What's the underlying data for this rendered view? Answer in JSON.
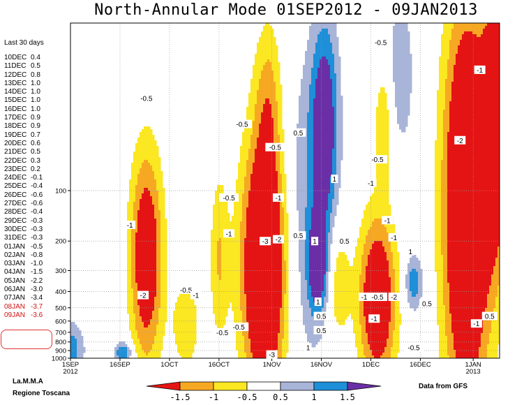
{
  "title": "North-Annular Mode 01SEP2012 - 09JAN2013",
  "last30_label": "Last 30 days",
  "daily_values": [
    {
      "day": "10DEC",
      "value": "0.4"
    },
    {
      "day": "11DEC",
      "value": "0.5"
    },
    {
      "day": "12DEC",
      "value": "0.8"
    },
    {
      "day": "13DEC",
      "value": "1.0"
    },
    {
      "day": "14DEC",
      "value": "1.0"
    },
    {
      "day": "15DEC",
      "value": "1.0"
    },
    {
      "day": "16DEC",
      "value": "1.0"
    },
    {
      "day": "17DEC",
      "value": "0.9"
    },
    {
      "day": "18DEC",
      "value": "0.9"
    },
    {
      "day": "19DEC",
      "value": "0.7"
    },
    {
      "day": "20DEC",
      "value": "0.6"
    },
    {
      "day": "21DEC",
      "value": "0.5"
    },
    {
      "day": "22DEC",
      "value": "0.3"
    },
    {
      "day": "23DEC",
      "value": "0.2"
    },
    {
      "day": "24DEC",
      "value": "-0.1"
    },
    {
      "day": "25DEC",
      "value": "-0.4"
    },
    {
      "day": "26DEC",
      "value": "-0.6"
    },
    {
      "day": "27DEC",
      "value": "-0.6"
    },
    {
      "day": "28DEC",
      "value": "-0.4"
    },
    {
      "day": "29DEC",
      "value": "-0.3"
    },
    {
      "day": "30DEC",
      "value": "-0.3"
    },
    {
      "day": "31DEC",
      "value": "-0.3"
    },
    {
      "day": "01JAN",
      "value": "-0.5"
    },
    {
      "day": "02JAN",
      "value": "-0.8"
    },
    {
      "day": "03JAN",
      "value": "-1.0"
    },
    {
      "day": "04JAN",
      "value": "-1.5"
    },
    {
      "day": "05JAN",
      "value": "-2.2"
    },
    {
      "day": "06JAN",
      "value": "-3.0"
    },
    {
      "day": "07JAN",
      "value": "-3.4"
    },
    {
      "day": "08JAN",
      "value": "-3.7"
    },
    {
      "day": "09JAN",
      "value": "-3.6"
    }
  ],
  "credit_line1": "La.M.M.A",
  "credit_line2": "Regione Toscana",
  "source": "Data from GFS",
  "chart_data": {
    "type": "heatmap",
    "title": "North-Annular Mode 01SEP2012 - 09JAN2013",
    "y_scale": "log",
    "y_reversed": true,
    "ylim": [
      10,
      1000
    ],
    "y_ticks": [
      {
        "value": 100,
        "label": "100"
      },
      {
        "value": 200,
        "label": "200"
      },
      {
        "value": 300,
        "label": "300"
      },
      {
        "value": 400,
        "label": "400"
      },
      {
        "value": 500,
        "label": "500"
      },
      {
        "value": 600,
        "label": "600"
      },
      {
        "value": 700,
        "label": "700"
      },
      {
        "value": 800,
        "label": "800"
      },
      {
        "value": 900,
        "label": "900"
      },
      {
        "value": 1000,
        "label": "1000"
      }
    ],
    "xlim": [
      "2012-09-01",
      "2013-01-09"
    ],
    "x_ticks": [
      {
        "date": "2012-09-01",
        "label": "1SEP",
        "sub": "2012"
      },
      {
        "date": "2012-09-16",
        "label": "16SEP",
        "sub": ""
      },
      {
        "date": "2012-10-01",
        "label": "1OCT",
        "sub": ""
      },
      {
        "date": "2012-10-16",
        "label": "16OCT",
        "sub": ""
      },
      {
        "date": "2012-11-01",
        "label": "1NOV",
        "sub": ""
      },
      {
        "date": "2012-11-16",
        "label": "16NOV",
        "sub": ""
      },
      {
        "date": "2012-12-01",
        "label": "1DEC",
        "sub": ""
      },
      {
        "date": "2012-12-16",
        "label": "16DEC",
        "sub": ""
      },
      {
        "date": "2013-01-01",
        "label": "1JAN",
        "sub": "2013"
      }
    ],
    "grid": true,
    "levels": [
      -1.5,
      -1,
      -0.5,
      0.5,
      1,
      1.5
    ],
    "colorbar": {
      "colors": [
        "#e51414",
        "#f7a823",
        "#fbe722",
        "#ffffff",
        "#a8b4d8",
        "#1e8fd8",
        "#6a2fa6"
      ],
      "labels": [
        "-1.5",
        "-1",
        "-0.5",
        "0.5",
        "1",
        "1.5"
      ]
    },
    "contour_labels": [
      {
        "text": "-0.5",
        "date": "2012-09-24",
        "p": 28
      },
      {
        "text": "-1",
        "date": "2012-09-19",
        "p": 160
      },
      {
        "text": "-2",
        "date": "2012-09-23",
        "p": 420
      },
      {
        "text": "-0.5",
        "date": "2012-10-06",
        "p": 390
      },
      {
        "text": "-1",
        "date": "2012-10-09",
        "p": 420
      },
      {
        "text": "-0.5",
        "date": "2012-10-17",
        "p": 700
      },
      {
        "text": "-0.5",
        "date": "2012-10-22",
        "p": 650
      },
      {
        "text": "-0.5",
        "date": "2012-10-19",
        "p": 110
      },
      {
        "text": "-1",
        "date": "2012-10-19",
        "p": 180
      },
      {
        "text": "-0.5",
        "date": "2012-10-23",
        "p": 40
      },
      {
        "text": "-0.5",
        "date": "2012-11-02",
        "p": 55
      },
      {
        "text": "-1",
        "date": "2012-11-03",
        "p": 110
      },
      {
        "text": "-3",
        "date": "2012-10-30",
        "p": 200
      },
      {
        "text": "-2",
        "date": "2012-11-03",
        "p": 195
      },
      {
        "text": "-3",
        "date": "2012-11-01",
        "p": 950
      },
      {
        "text": "0.5",
        "date": "2012-11-09",
        "p": 45
      },
      {
        "text": "1",
        "date": "2012-11-20",
        "p": 85
      },
      {
        "text": "0.5",
        "date": "2012-11-09",
        "p": 185
      },
      {
        "text": "1",
        "date": "2012-11-14",
        "p": 200
      },
      {
        "text": "0.5",
        "date": "2012-11-23",
        "p": 200
      },
      {
        "text": "1",
        "date": "2012-11-15",
        "p": 460
      },
      {
        "text": "0.5",
        "date": "2012-11-16",
        "p": 560
      },
      {
        "text": "0.5",
        "date": "2012-11-16",
        "p": 680
      },
      {
        "text": "1",
        "date": "2012-11-12",
        "p": 860
      },
      {
        "text": "-0.5",
        "date": "2012-12-04",
        "p": 13
      },
      {
        "text": "-0.5",
        "date": "2012-12-03",
        "p": 65
      },
      {
        "text": "-1",
        "date": "2012-12-01",
        "p": 90
      },
      {
        "text": "-1",
        "date": "2012-12-06",
        "p": 150
      },
      {
        "text": "-1",
        "date": "2012-12-08",
        "p": 190
      },
      {
        "text": "-1",
        "date": "2012-11-29",
        "p": 430
      },
      {
        "text": "-0.5",
        "date": "2012-12-03",
        "p": 430
      },
      {
        "text": "-2",
        "date": "2012-12-08",
        "p": 430
      },
      {
        "text": "-1",
        "date": "2012-12-02",
        "p": 580
      },
      {
        "text": "1",
        "date": "2012-12-13",
        "p": 230
      },
      {
        "text": "0.5",
        "date": "2012-12-18",
        "p": 470
      },
      {
        "text": "-0.5",
        "date": "2012-12-14",
        "p": 860
      },
      {
        "text": "-1",
        "date": "2013-01-03",
        "p": 19
      },
      {
        "text": "-2",
        "date": "2012-12-28",
        "p": 50
      },
      {
        "text": "0.5",
        "date": "2013-01-06",
        "p": 560
      },
      {
        "text": "-1",
        "date": "2013-01-02",
        "p": 620
      }
    ]
  }
}
